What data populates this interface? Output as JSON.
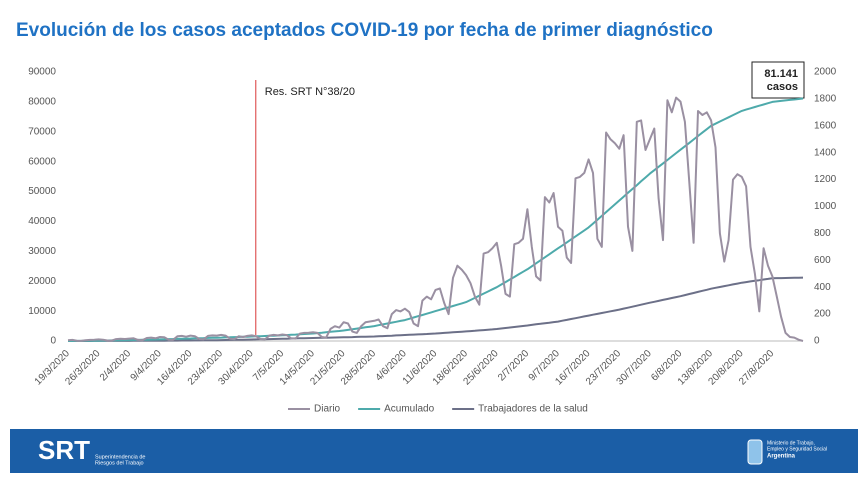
{
  "chart_data": {
    "type": "line",
    "title": "Evolución de los casos aceptados COVID-19 por fecha de primer diagnóstico",
    "categories": [
      "19/3/2020",
      null,
      null,
      null,
      null,
      null,
      null,
      "26/3/2020",
      null,
      null,
      null,
      null,
      null,
      null,
      "2/4/2020",
      null,
      null,
      null,
      null,
      null,
      null,
      "9/4/2020",
      null,
      null,
      null,
      null,
      null,
      null,
      "16/4/2020",
      null,
      null,
      null,
      null,
      null,
      null,
      "23/4/2020",
      null,
      null,
      null,
      null,
      null,
      null,
      "30/4/2020",
      null,
      null,
      null,
      null,
      null,
      null,
      "7/5/2020",
      null,
      null,
      null,
      null,
      null,
      null,
      "14/5/2020",
      null,
      null,
      null,
      null,
      null,
      null,
      "21/5/2020",
      null,
      null,
      null,
      null,
      null,
      null,
      "28/5/2020",
      null,
      null,
      null,
      null,
      null,
      null,
      "4/6/2020",
      null,
      null,
      null,
      null,
      null,
      null,
      "11/6/2020",
      null,
      null,
      null,
      null,
      null,
      null,
      "18/6/2020",
      null,
      null,
      null,
      null,
      null,
      null,
      "25/6/2020",
      null,
      null,
      null,
      null,
      null,
      null,
      "2/7/2020",
      null,
      null,
      null,
      null,
      null,
      null,
      "9/7/2020",
      null,
      null,
      null,
      null,
      null,
      null,
      "16/7/2020",
      null,
      null,
      null,
      null,
      null,
      null,
      "23/7/2020",
      null,
      null,
      null,
      null,
      null,
      null,
      "30/7/2020",
      null,
      null,
      null,
      null,
      null,
      null,
      "6/8/2020",
      null,
      null,
      null,
      null,
      null,
      null,
      "13/8/2020",
      null,
      null,
      null,
      null,
      null,
      null,
      "20/8/2020",
      null,
      null,
      null,
      null,
      null,
      null,
      "27/8/2020",
      null,
      null,
      null,
      null,
      null,
      null,
      null
    ],
    "series": [
      {
        "name": "Diario",
        "color": "#9a90a2",
        "axis": "y2",
        "values": [
          5,
          8,
          2,
          1,
          6,
          8,
          10,
          12,
          10,
          4,
          3,
          14,
          16,
          15,
          18,
          20,
          8,
          6,
          22,
          25,
          20,
          30,
          28,
          10,
          8,
          35,
          38,
          32,
          40,
          36,
          15,
          12,
          38,
          42,
          40,
          45,
          40,
          18,
          14,
          35,
          30,
          38,
          42,
          35,
          15,
          12,
          40,
          45,
          42,
          48,
          44,
          20,
          18,
          55,
          60,
          62,
          65,
          60,
          30,
          25,
          90,
          110,
          100,
          140,
          130,
          70,
          60,
          110,
          140,
          145,
          150,
          160,
          110,
          95,
          200,
          230,
          220,
          240,
          215,
          130,
          110,
          300,
          330,
          310,
          380,
          390,
          280,
          200,
          470,
          560,
          530,
          490,
          430,
          330,
          270,
          650,
          660,
          690,
          730,
          560,
          350,
          330,
          720,
          730,
          760,
          980,
          700,
          480,
          450,
          1070,
          1030,
          1100,
          850,
          820,
          620,
          580,
          1210,
          1220,
          1250,
          1350,
          1250,
          760,
          700,
          1550,
          1500,
          1470,
          1430,
          1530,
          850,
          670,
          1630,
          1640,
          1420,
          1500,
          1580,
          1060,
          750,
          1790,
          1700,
          1810,
          1780,
          1630,
          1180,
          730,
          1710,
          1680,
          1700,
          1640,
          1440,
          800,
          590,
          750,
          1200,
          1240,
          1220,
          1150,
          700,
          500,
          220,
          690,
          560,
          480,
          330,
          180,
          60,
          30,
          25,
          10,
          0
        ]
      },
      {
        "name": "Acumulado",
        "color": "#4eaaab",
        "values": [
          0,
          14,
          29,
          43,
          57,
          71,
          86,
          100,
          129,
          157,
          186,
          214,
          243,
          271,
          300,
          336,
          371,
          407,
          443,
          479,
          514,
          550,
          593,
          636,
          679,
          721,
          764,
          807,
          850,
          893,
          936,
          979,
          1021,
          1064,
          1107,
          1150,
          1200,
          1250,
          1300,
          1350,
          1400,
          1450,
          1500,
          1557,
          1614,
          1671,
          1729,
          1786,
          1843,
          1900,
          1986,
          2071,
          2157,
          2243,
          2329,
          2414,
          2500,
          2643,
          2786,
          2929,
          3071,
          3214,
          3357,
          3500,
          3714,
          3929,
          4143,
          4357,
          4571,
          4786,
          5000,
          5286,
          5571,
          5857,
          6143,
          6429,
          6714,
          7000,
          7429,
          7857,
          8286,
          8714,
          9143,
          9571,
          10000,
          10429,
          10857,
          11286,
          11714,
          12143,
          12571,
          13000,
          13714,
          14429,
          15143,
          15857,
          16571,
          17286,
          18000,
          18857,
          19714,
          20571,
          21429,
          22286,
          23143,
          24000,
          25000,
          26000,
          27000,
          28000,
          29000,
          30000,
          31000,
          32000,
          33000,
          34000,
          35000,
          36000,
          37000,
          38000,
          39286,
          40571,
          41857,
          43143,
          44429,
          45714,
          47000,
          48286,
          49571,
          50857,
          52143,
          53429,
          54714,
          56000,
          57143,
          58286,
          59429,
          60571,
          61714,
          62857,
          64000,
          65143,
          66286,
          67429,
          68571,
          69714,
          70857,
          72000,
          72714,
          73429,
          74143,
          74857,
          75571,
          76286,
          77000,
          77429,
          77857,
          78286,
          78714,
          79143,
          79571,
          80000,
          80163,
          80326,
          80489,
          80652,
          80815,
          80978,
          81141
        ]
      },
      {
        "name": "Trabajadores de la salud",
        "color": "#6c7088",
        "values": [
          0,
          3,
          6,
          9,
          11,
          14,
          17,
          20,
          24,
          29,
          33,
          37,
          41,
          46,
          50,
          57,
          64,
          71,
          79,
          86,
          93,
          100,
          111,
          123,
          134,
          146,
          157,
          169,
          180,
          197,
          214,
          231,
          249,
          266,
          283,
          300,
          329,
          357,
          386,
          414,
          443,
          471,
          500,
          536,
          571,
          607,
          643,
          679,
          714,
          750,
          786,
          821,
          857,
          893,
          929,
          964,
          1000,
          1036,
          1071,
          1107,
          1143,
          1179,
          1214,
          1250,
          1286,
          1321,
          1357,
          1393,
          1429,
          1464,
          1500,
          1571,
          1643,
          1714,
          1786,
          1857,
          1929,
          2000,
          2071,
          2143,
          2214,
          2286,
          2357,
          2429,
          2500,
          2600,
          2700,
          2800,
          2900,
          3000,
          3100,
          3200,
          3314,
          3429,
          3543,
          3657,
          3771,
          3886,
          4000,
          4171,
          4343,
          4514,
          4686,
          4857,
          5029,
          5200,
          5386,
          5571,
          5757,
          5943,
          6129,
          6314,
          6500,
          6786,
          7071,
          7357,
          7643,
          7929,
          8214,
          8500,
          8786,
          9071,
          9357,
          9643,
          9929,
          10214,
          10500,
          10829,
          11157,
          11486,
          11814,
          12143,
          12471,
          12800,
          13114,
          13429,
          13743,
          14057,
          14371,
          14686,
          15000,
          15357,
          15714,
          16071,
          16429,
          16786,
          17143,
          17500,
          17786,
          18071,
          18357,
          18643,
          18929,
          19214,
          19500,
          19714,
          19929,
          20143,
          20357,
          20571,
          20786,
          21000,
          21029,
          21057,
          21086,
          21114,
          21143,
          21171,
          21200
        ]
      }
    ],
    "ylim": [
      0,
      90000
    ],
    "yticks": [
      0,
      10000,
      20000,
      30000,
      40000,
      50000,
      60000,
      70000,
      80000,
      90000
    ],
    "y2lim": [
      0,
      2000
    ],
    "y2ticks": [
      0,
      200,
      400,
      600,
      800,
      1000,
      1200,
      1400,
      1600,
      1800,
      2000
    ],
    "annotation": {
      "text": "Res. SRT N°38/20",
      "x": 42,
      "color": "#e05a5a"
    },
    "callout": "81.141 casos",
    "legend": "bottom"
  },
  "footer": {
    "logo": "SRT",
    "logo_sub": [
      "Superintendencia de",
      "Riesgos del Trabajo"
    ],
    "ministry": [
      "Ministerio de Trabajo,",
      "Empleo y Seguridad Social",
      "Argentina"
    ]
  }
}
